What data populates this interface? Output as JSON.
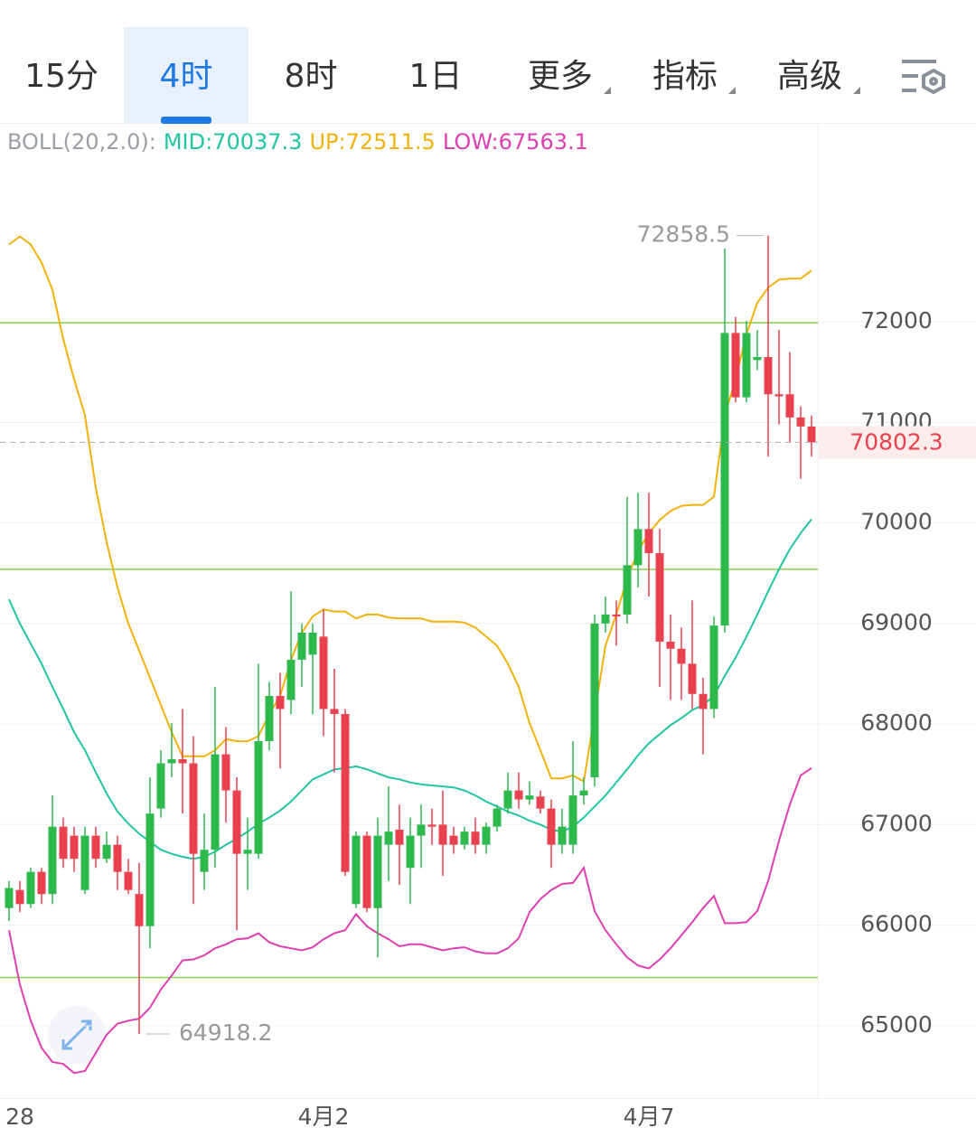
{
  "tabs": [
    {
      "label": "15分"
    },
    {
      "label": "4时",
      "selected": true
    },
    {
      "label": "8时"
    },
    {
      "label": "1日"
    },
    {
      "label": "更多",
      "dropdown": true
    },
    {
      "label": "指标",
      "dropdown": true
    },
    {
      "label": "高级",
      "dropdown": true
    }
  ],
  "chart_data": {
    "type": "candlestick",
    "indicator": "BOLL(20,2.0):",
    "categories": [
      "28",
      null,
      null,
      null,
      null,
      null,
      null,
      null,
      null,
      null,
      null,
      null,
      null,
      null,
      null,
      null,
      null,
      null,
      null,
      null,
      null,
      null,
      null,
      null,
      null,
      null,
      null,
      null,
      null,
      "4月2",
      null,
      null,
      null,
      null,
      null,
      null,
      null,
      null,
      null,
      null,
      null,
      null,
      null,
      null,
      null,
      null,
      null,
      null,
      null,
      null,
      null,
      null,
      null,
      null,
      null,
      null,
      null,
      null,
      null,
      "4月7",
      null,
      null,
      null,
      null,
      null,
      null,
      null,
      null,
      null,
      null,
      null,
      null,
      null,
      null,
      null
    ],
    "candles": {
      "open": [
        66170,
        66350,
        66210,
        66530,
        66310,
        66980,
        66890,
        66350,
        66890,
        66660,
        66800,
        66530,
        66310,
        65990,
        67160,
        67610,
        67650,
        67610,
        66530,
        66750,
        67700,
        67340,
        66710,
        66710,
        67830,
        68280,
        68240,
        68640,
        68690,
        68870,
        68150,
        68100,
        66210,
        66890,
        66170,
        66800,
        66950,
        66570,
        66890,
        67000,
        67000,
        66890,
        66800,
        66930,
        66800,
        66980,
        67160,
        67340,
        67250,
        67280,
        67160,
        66800,
        66800,
        67290,
        67470,
        69000,
        69090,
        69090,
        69580,
        69940,
        69700,
        68820,
        68750,
        68600,
        68300,
        68150,
        68980,
        71890,
        71250,
        71620,
        71650,
        71280,
        71280,
        71050,
        70960
      ],
      "high": [
        66440,
        66440,
        66570,
        66570,
        67290,
        67070,
        66980,
        66980,
        66980,
        66930,
        66890,
        66660,
        66620,
        67470,
        67740,
        68010,
        68150,
        67880,
        67110,
        68370,
        67970,
        67470,
        67070,
        68600,
        68420,
        68510,
        69320,
        69000,
        69000,
        69140,
        68550,
        68150,
        66930,
        66930,
        67070,
        67380,
        67200,
        67070,
        67200,
        67160,
        67340,
        66980,
        66980,
        67070,
        67020,
        67200,
        67520,
        67520,
        67430,
        67340,
        67250,
        67160,
        67830,
        67470,
        69090,
        69270,
        69230,
        70260,
        70300,
        70300,
        69940,
        69090,
        68960,
        69230,
        68460,
        69070,
        72730,
        72050,
        72010,
        71920,
        72858.5,
        71920,
        71700,
        71160,
        71070
      ],
      "low": [
        66040,
        66130,
        66170,
        66210,
        66210,
        66570,
        66530,
        66310,
        66570,
        66620,
        66350,
        66310,
        64918.2,
        65770,
        67070,
        67470,
        67110,
        66210,
        66350,
        66570,
        67020,
        65950,
        66350,
        66660,
        67740,
        67560,
        68100,
        68370,
        68100,
        67880,
        67520,
        66490,
        66170,
        66130,
        65680,
        66440,
        66400,
        66210,
        66570,
        66800,
        66490,
        66710,
        66750,
        66710,
        66710,
        66930,
        67110,
        67160,
        67200,
        67110,
        66570,
        66710,
        66710,
        67200,
        67380,
        68910,
        68780,
        69000,
        69360,
        69270,
        68370,
        68240,
        68240,
        68150,
        67700,
        68060,
        68910,
        71200,
        71200,
        71520,
        70660,
        70980,
        70800,
        70440,
        70660
      ],
      "close": [
        66370,
        66210,
        66530,
        66310,
        66980,
        66660,
        66660,
        66890,
        66660,
        66800,
        66530,
        66350,
        65990,
        67110,
        67610,
        67650,
        67610,
        66710,
        66750,
        67700,
        67340,
        66710,
        66750,
        67830,
        68280,
        68150,
        68640,
        68910,
        68910,
        68150,
        68100,
        66530,
        66890,
        66170,
        66890,
        66930,
        66800,
        66890,
        67000,
        66980,
        66800,
        66800,
        66930,
        66800,
        66980,
        67160,
        67340,
        67250,
        67290,
        67160,
        66800,
        66980,
        67290,
        67340,
        69000,
        69090,
        69070,
        69580,
        69940,
        69700,
        68820,
        68750,
        68600,
        68300,
        68150,
        68980,
        71890,
        71250,
        71890,
        71650,
        71280,
        71260,
        71050,
        70960,
        70802.3
      ]
    },
    "up_color": "#2eb84e",
    "down_color": "#e8414f",
    "series": [
      {
        "name": "MID:70037.3",
        "color": "#22c4a1",
        "values": [
          69240,
          69000,
          68800,
          68600,
          68370,
          68150,
          67920,
          67740,
          67520,
          67310,
          67130,
          67010,
          66910,
          66830,
          66750,
          66710,
          66680,
          66660,
          66680,
          66730,
          66800,
          66860,
          66930,
          67010,
          67070,
          67140,
          67230,
          67340,
          67450,
          67500,
          67550,
          67560,
          67580,
          67550,
          67510,
          67470,
          67450,
          67420,
          67400,
          67390,
          67380,
          67370,
          67340,
          67290,
          67230,
          67180,
          67130,
          67090,
          67040,
          67000,
          66950,
          66930,
          66980,
          67070,
          67180,
          67290,
          67420,
          67550,
          67690,
          67810,
          67900,
          67990,
          68060,
          68140,
          68190,
          68280,
          68480,
          68660,
          68870,
          69090,
          69320,
          69540,
          69740,
          69900,
          70037.3
        ]
      },
      {
        "name": "UP:72511.5",
        "color": "#f0b20c",
        "values": [
          72770,
          72850,
          72770,
          72590,
          72320,
          71830,
          71430,
          71070,
          70350,
          69810,
          69360,
          69000,
          68730,
          68460,
          68190,
          67920,
          67680,
          67680,
          67680,
          67740,
          67850,
          67830,
          67830,
          67880,
          68100,
          68280,
          68640,
          68910,
          69070,
          69140,
          69120,
          69120,
          69050,
          69090,
          69090,
          69060,
          69050,
          69050,
          69050,
          69020,
          69020,
          69020,
          69010,
          68960,
          68870,
          68780,
          68600,
          68370,
          68010,
          67740,
          67460,
          67460,
          67490,
          67430,
          68100,
          68780,
          69090,
          69450,
          69720,
          69900,
          70030,
          70120,
          70170,
          70180,
          70180,
          70260,
          71070,
          71430,
          71880,
          72190,
          72340,
          72420,
          72430,
          72430,
          72511.5
        ]
      },
      {
        "name": "LOW:67563.1",
        "color": "#de3fb1",
        "values": [
          65950,
          65410,
          65050,
          64780,
          64640,
          64620,
          64530,
          64550,
          64730,
          64910,
          65020,
          65050,
          65070,
          65180,
          65360,
          65500,
          65650,
          65660,
          65700,
          65770,
          65810,
          65860,
          65870,
          65920,
          65830,
          65790,
          65770,
          65750,
          65780,
          65860,
          65920,
          65950,
          66110,
          65990,
          65920,
          65860,
          65790,
          65810,
          65810,
          65780,
          65750,
          65770,
          65780,
          65740,
          65720,
          65720,
          65770,
          65870,
          66130,
          66260,
          66350,
          66410,
          66420,
          66570,
          66140,
          65950,
          65810,
          65680,
          65600,
          65570,
          65660,
          65770,
          65900,
          66030,
          66170,
          66290,
          66020,
          66020,
          66030,
          66140,
          66440,
          66840,
          67200,
          67490,
          67563.1
        ]
      }
    ],
    "hlines": [
      71990,
      69540,
      65480
    ],
    "hline_color": "#86d34e",
    "ylim": [
      64280,
      73970
    ],
    "yticks": [
      65000,
      66000,
      67000,
      68000,
      69000,
      70000,
      71000,
      72000
    ],
    "grid": true
  }
}
